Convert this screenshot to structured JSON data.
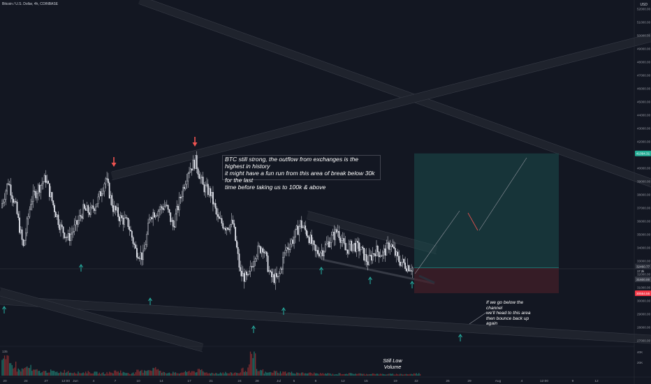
{
  "header": {
    "title": "Bitcoin / U.S. Dollar, 4h, COINBASE",
    "currency": "USD"
  },
  "chart_data": {
    "type": "candlestick",
    "symbol": "Bitcoin / U.S. Dollar",
    "interval": "4h",
    "exchange": "COINBASE",
    "y_ticks": [
      27000,
      28000,
      29000,
      30000,
      31000,
      32000,
      33000,
      34000,
      35000,
      36000,
      37000,
      38000,
      39000,
      40000,
      41000,
      42000,
      43000,
      44000,
      45000,
      46000,
      47000,
      48000,
      49000,
      50000,
      51000,
      52000
    ],
    "ylim": [
      26500,
      52400
    ],
    "x_ticks": [
      "20",
      "24",
      "27",
      "12:00",
      "Jun",
      "4",
      "7",
      "10",
      "14",
      "17",
      "21",
      "24",
      "28",
      "Jul",
      "5",
      "8",
      "12",
      "15",
      "19",
      "22",
      "26",
      "29",
      "Aug",
      "4",
      "12:00",
      "9",
      "12"
    ],
    "price_labels": {
      "target": {
        "text": "41094.31",
        "value": 41094.31
      },
      "entry": {
        "text": "32460.77",
        "value": 32460.77
      },
      "entry_sub": {
        "text": "17.2k",
        "value": 17.2
      },
      "gray": {
        "text": "31600.00",
        "value": 31600
      },
      "stop": {
        "text": "30554.55",
        "value": 30554.55
      }
    },
    "volume": {
      "top_label": "135",
      "axis_labels": [
        "40K",
        "20K"
      ]
    },
    "close_path": [
      [
        "May 20",
        37000
      ],
      [
        "May 21",
        39000
      ],
      [
        "May 22",
        37000
      ],
      [
        "May 23",
        34000
      ],
      [
        "May 24",
        37500
      ],
      [
        "May 25",
        38500
      ],
      [
        "May 26",
        39200
      ],
      [
        "May 27",
        37200
      ],
      [
        "May 28",
        35500
      ],
      [
        "May 29",
        34700
      ],
      [
        "May 30",
        35600
      ],
      [
        "May 31",
        36800
      ],
      [
        "Jun 1",
        36700
      ],
      [
        "Jun 2",
        37600
      ],
      [
        "Jun 3",
        39200
      ],
      [
        "Jun 4",
        37000
      ],
      [
        "Jun 5",
        36200
      ],
      [
        "Jun 6",
        35800
      ],
      [
        "Jun 7",
        33800
      ],
      [
        "Jun 8",
        33300
      ],
      [
        "Jun 9",
        36500
      ],
      [
        "Jun 10",
        36800
      ],
      [
        "Jun 11",
        37200
      ],
      [
        "Jun 12",
        35600
      ],
      [
        "Jun 13",
        37800
      ],
      [
        "Jun 14",
        39800
      ],
      [
        "Jun 15",
        40500
      ],
      [
        "Jun 16",
        38600
      ],
      [
        "Jun 17",
        38100
      ],
      [
        "Jun 18",
        36100
      ],
      [
        "Jun 19",
        35600
      ],
      [
        "Jun 20",
        35800
      ],
      [
        "Jun 21",
        32000
      ],
      [
        "Jun 22",
        31600
      ],
      [
        "Jun 23",
        33600
      ],
      [
        "Jun 24",
        34100
      ],
      [
        "Jun 25",
        31800
      ],
      [
        "Jun 26",
        31600
      ],
      [
        "Jun 27",
        33800
      ],
      [
        "Jun 28",
        34600
      ],
      [
        "Jun 29",
        35800
      ],
      [
        "Jun 30",
        35000
      ],
      [
        "Jul 1",
        33600
      ],
      [
        "Jul 2",
        33800
      ],
      [
        "Jul 3",
        34600
      ],
      [
        "Jul 4",
        35300
      ],
      [
        "Jul 5",
        33800
      ],
      [
        "Jul 6",
        34200
      ],
      [
        "Jul 7",
        33900
      ],
      [
        "Jul 8",
        32900
      ],
      [
        "Jul 9",
        33800
      ],
      [
        "Jul 10",
        33500
      ],
      [
        "Jul 11",
        34300
      ],
      [
        "Jul 12",
        33100
      ],
      [
        "Jul 13",
        32700
      ],
      [
        "Jul 14",
        32460
      ]
    ],
    "volume_path": [
      [
        "May 20",
        30000
      ],
      [
        "May 21",
        22000
      ],
      [
        "May 22",
        12000
      ],
      [
        "May 23",
        16000
      ],
      [
        "May 24",
        10000
      ],
      [
        "May 25",
        8000
      ],
      [
        "May 26",
        9000
      ],
      [
        "May 27",
        7000
      ],
      [
        "May 28",
        9000
      ],
      [
        "May 29",
        7000
      ],
      [
        "May 30",
        6000
      ],
      [
        "May 31",
        7000
      ],
      [
        "Jun 1",
        6000
      ],
      [
        "Jun 2",
        5000
      ],
      [
        "Jun 3",
        6000
      ],
      [
        "Jun 4",
        9000
      ],
      [
        "Jun 5",
        6000
      ],
      [
        "Jun 6",
        5000
      ],
      [
        "Jun 7",
        9000
      ],
      [
        "Jun 8",
        12000
      ],
      [
        "Jun 9",
        14000
      ],
      [
        "Jun 10",
        8000
      ],
      [
        "Jun 11",
        6000
      ],
      [
        "Jun 12",
        5000
      ],
      [
        "Jun 13",
        7000
      ],
      [
        "Jun 14",
        9000
      ],
      [
        "Jun 15",
        10000
      ],
      [
        "Jun 16",
        6000
      ],
      [
        "Jun 17",
        5000
      ],
      [
        "Jun 18",
        6000
      ],
      [
        "Jun 19",
        5000
      ],
      [
        "Jun 20",
        6000
      ],
      [
        "Jun 21",
        12000
      ],
      [
        "Jun 22",
        36000
      ],
      [
        "Jun 23",
        10000
      ],
      [
        "Jun 24",
        6000
      ],
      [
        "Jun 25",
        8000
      ],
      [
        "Jun 26",
        7000
      ],
      [
        "Jun 27",
        6000
      ],
      [
        "Jun 28",
        6000
      ],
      [
        "Jun 29",
        5000
      ],
      [
        "Jun 30",
        5000
      ],
      [
        "Jul 1",
        4000
      ],
      [
        "Jul 2",
        4000
      ],
      [
        "Jul 3",
        3000
      ],
      [
        "Jul 4",
        4000
      ],
      [
        "Jul 5",
        4000
      ],
      [
        "Jul 6",
        4000
      ],
      [
        "Jul 7",
        3000
      ],
      [
        "Jul 8",
        4000
      ],
      [
        "Jul 9",
        3000
      ],
      [
        "Jul 10",
        3000
      ],
      [
        "Jul 11",
        3000
      ],
      [
        "Jul 12",
        3000
      ],
      [
        "Jul 13",
        3000
      ],
      [
        "Jul 14",
        4000
      ]
    ],
    "grid": false
  },
  "annotations": {
    "main_note": "BTC still strong, the outflow from exchanges is the highest in history\nit might have a fun run from this area of break below 30k for the last\ntime before taking us to 100k & above",
    "channel_note": "If we go below the channel\nwe'll head to this area\nthen bounce back up again",
    "volume_note": "Still Low Volume"
  },
  "colors": {
    "background": "#131722",
    "candle": "#e0e3eb",
    "long_profit_zone": "#1b4d4c",
    "long_loss_zone": "#4a1f2a",
    "target_label": "#22ab94",
    "stop_label": "#f23645",
    "up_arrow": "#26a69a",
    "down_arrow": "#ef5350",
    "channel": "#2a2e39"
  }
}
